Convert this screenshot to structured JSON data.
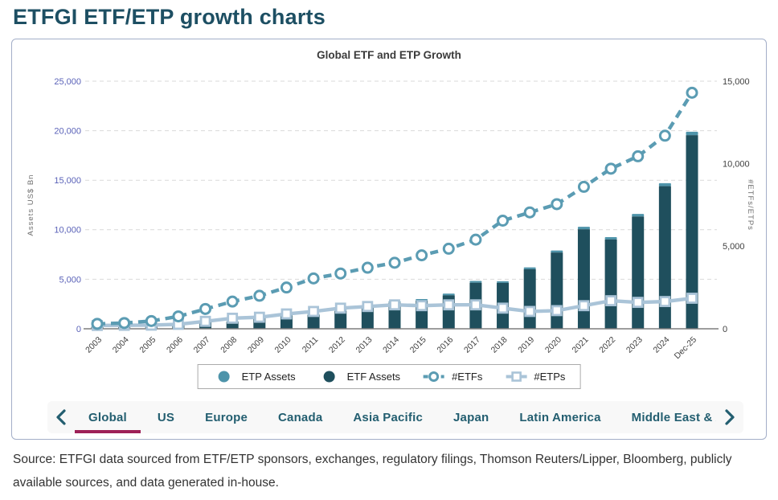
{
  "page": {
    "title": "ETFGI ETF/ETP growth charts"
  },
  "source_note": "Source: ETFGI data sourced from ETF/ETP sponsors, exchanges, regulatory filings, Thomson Reuters/Lipper, Bloomberg, publicly available sources, and data generated in-house.",
  "colors": {
    "etp_assets_bar": "#4e94aa",
    "etf_assets_bar": "#1f4f5d",
    "etfs_line": "#5b9cb3",
    "etps_line": "#aac4d8",
    "grid": "#d9d9d9",
    "zero_line": "#7f7f7f",
    "left_tick_text": "#5a62b8",
    "right_tick_text": "#3f3f3f",
    "x_tick_text": "#3f3f3f",
    "axis_label_text": "#6e6e6e",
    "tab_text": "#235e70",
    "active_tab_underline": "#9e2157",
    "title_text": "#1d4f63"
  },
  "tabs": {
    "items": [
      "Global",
      "US",
      "Europe",
      "Canada",
      "Asia Pacific",
      "Japan",
      "Latin America",
      "Middle East & Africa"
    ],
    "active": "Global",
    "prev_icon": "chevron-left",
    "next_icon": "chevron-right"
  },
  "chart_data": {
    "type": "bar",
    "subtype": "stacked-bars-with-lines",
    "title": "Global ETF and ETP Growth",
    "categories": [
      "2003",
      "2004",
      "2005",
      "2006",
      "2007",
      "2008",
      "2009",
      "2010",
      "2011",
      "2012",
      "2013",
      "2014",
      "2015",
      "2016",
      "2017",
      "2018",
      "2019",
      "2020",
      "2021",
      "2022",
      "2023",
      "2024",
      "Dec-25"
    ],
    "series": [
      {
        "name": "ETP Assets",
        "type": "bar",
        "axis": "left",
        "legend_marker": "filled-circle",
        "values": [
          10,
          15,
          25,
          40,
          60,
          60,
          90,
          120,
          130,
          150,
          160,
          170,
          160,
          170,
          180,
          160,
          180,
          200,
          250,
          230,
          260,
          300,
          350
        ]
      },
      {
        "name": "ETF Assets",
        "type": "bar",
        "axis": "left",
        "legend_marker": "filled-circle",
        "values": [
          200,
          295,
          395,
          540,
          790,
          710,
          1070,
          1360,
          1400,
          1800,
          2240,
          2630,
          2840,
          3380,
          4650,
          4640,
          6020,
          7700,
          10050,
          9020,
          11340,
          14400,
          19550
        ]
      },
      {
        "name": "#ETFs",
        "type": "line",
        "axis": "right",
        "dashed": true,
        "marker": "circle",
        "legend_marker": "dash-circle",
        "values": [
          300,
          350,
          470,
          750,
          1200,
          1650,
          2000,
          2500,
          3050,
          3350,
          3700,
          4000,
          4450,
          4850,
          5400,
          6550,
          7050,
          7550,
          8600,
          9700,
          10450,
          11700,
          14300
        ]
      },
      {
        "name": "#ETPs",
        "type": "line",
        "axis": "right",
        "dashed": false,
        "marker": "square",
        "legend_marker": "line-square",
        "values": [
          200,
          210,
          220,
          270,
          450,
          640,
          700,
          900,
          1050,
          1250,
          1350,
          1450,
          1400,
          1450,
          1450,
          1250,
          1050,
          1100,
          1400,
          1700,
          1600,
          1650,
          1850
        ]
      }
    ],
    "left_axis": {
      "label": "Assets US$ Bn",
      "max": 25000,
      "tick_step": 5000,
      "ticks": [
        "0",
        "5,000",
        "10,000",
        "15,000",
        "20,000",
        "25,000"
      ]
    },
    "right_axis": {
      "label": "#ETFs/ETPs",
      "max": 15000,
      "tick_step": 5000,
      "ticks": [
        "0",
        "5,000",
        "10,000",
        "15,000"
      ]
    },
    "legend": [
      "ETP Assets",
      "ETF Assets",
      "#ETFs",
      "#ETPs"
    ],
    "grid": "horizontal-dashed",
    "legend_position": "bottom-center"
  }
}
